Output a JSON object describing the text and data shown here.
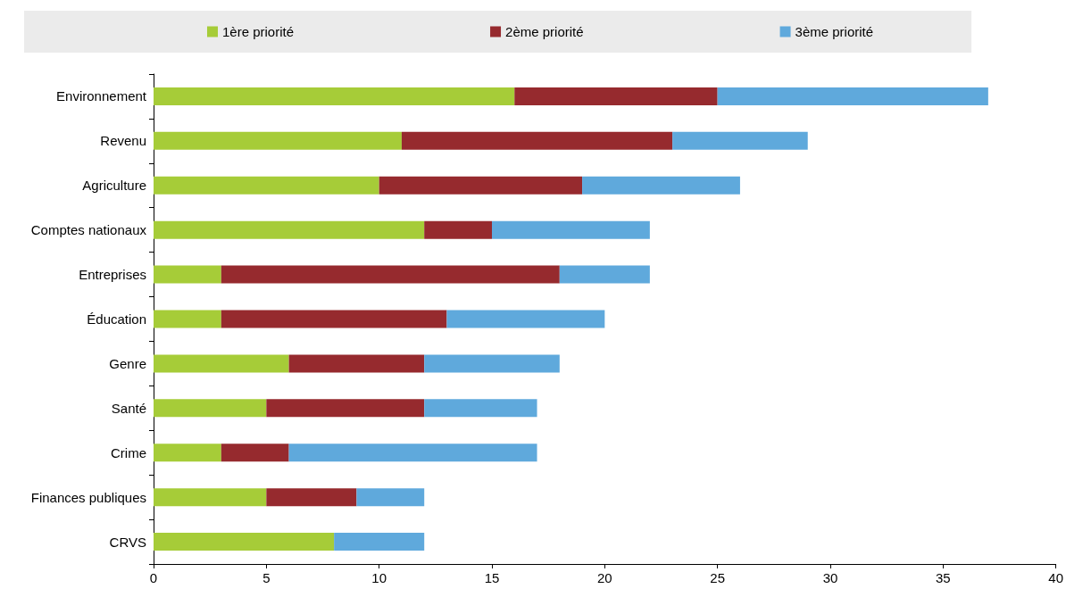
{
  "chart_data": {
    "type": "bar",
    "orientation": "horizontal",
    "stacked": true,
    "categories": [
      "Environnement",
      "Revenu",
      "Agriculture",
      "Comptes nationaux",
      "Entreprises",
      "Éducation",
      "Genre",
      "Santé",
      "Crime",
      "Finances publiques",
      "CRVS"
    ],
    "series": [
      {
        "name": "1ère priorité",
        "color": "#a6cc38",
        "values": [
          16,
          11,
          10,
          12,
          3,
          3,
          6,
          5,
          3,
          5,
          8
        ]
      },
      {
        "name": "2ème priorité",
        "color": "#962a2e",
        "values": [
          9,
          12,
          9,
          3,
          15,
          10,
          6,
          7,
          3,
          4,
          0
        ]
      },
      {
        "name": "3ème priorité",
        "color": "#5fa9dc",
        "values": [
          12,
          6,
          7,
          7,
          4,
          7,
          6,
          5,
          11,
          3,
          4
        ]
      }
    ],
    "xlim": [
      0,
      40
    ],
    "xticks": [
      0,
      5,
      10,
      15,
      20,
      25,
      30,
      35,
      40
    ],
    "grid": false,
    "legend": "top"
  }
}
